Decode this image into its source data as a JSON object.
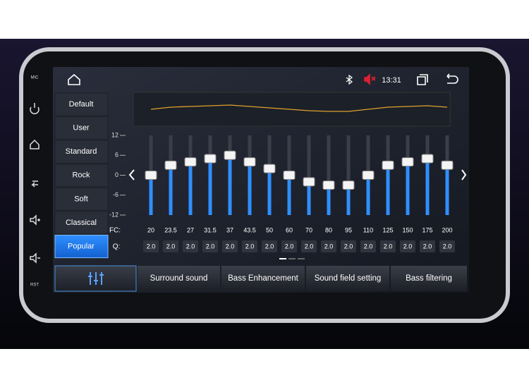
{
  "side_buttons": {
    "mic": "MIC",
    "rst": "RST"
  },
  "status": {
    "time": "13:31"
  },
  "presets": {
    "items": [
      "Default",
      "User",
      "Standard",
      "Rock",
      "Soft",
      "Classical",
      "Popular"
    ],
    "selected": 6
  },
  "eq": {
    "range": [
      -12,
      12
    ],
    "ticks": [
      12,
      6,
      0,
      -6,
      -12
    ],
    "fc_label": "FC:",
    "q_label": "Q:",
    "bands": [
      {
        "fc": "20",
        "q": "2.0",
        "gain": 0
      },
      {
        "fc": "23.5",
        "q": "2.0",
        "gain": 3
      },
      {
        "fc": "27",
        "q": "2.0",
        "gain": 4
      },
      {
        "fc": "31.5",
        "q": "2.0",
        "gain": 5
      },
      {
        "fc": "37",
        "q": "2.0",
        "gain": 6
      },
      {
        "fc": "43.5",
        "q": "2.0",
        "gain": 4
      },
      {
        "fc": "50",
        "q": "2.0",
        "gain": 2
      },
      {
        "fc": "60",
        "q": "2.0",
        "gain": 0
      },
      {
        "fc": "70",
        "q": "2.0",
        "gain": -2
      },
      {
        "fc": "80",
        "q": "2.0",
        "gain": -3
      },
      {
        "fc": "95",
        "q": "2.0",
        "gain": -3
      },
      {
        "fc": "110",
        "q": "2.0",
        "gain": 0
      },
      {
        "fc": "125",
        "q": "2.0",
        "gain": 3
      },
      {
        "fc": "150",
        "q": "2.0",
        "gain": 4
      },
      {
        "fc": "175",
        "q": "2.0",
        "gain": 5
      },
      {
        "fc": "200",
        "q": "2.0",
        "gain": 3
      }
    ]
  },
  "tabs": [
    "Surround sound",
    "Bass Enhancement",
    "Sound field setting",
    "Bass filtering"
  ]
}
